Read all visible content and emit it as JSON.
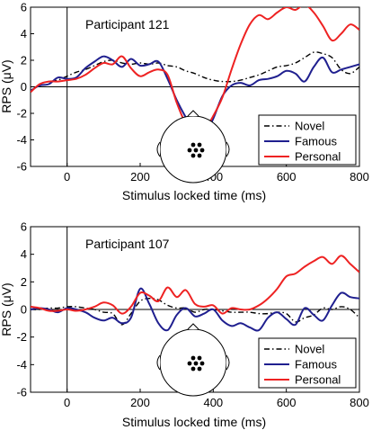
{
  "chart_data": [
    {
      "type": "line",
      "title": "Participant 121",
      "xlabel": "Stimulus locked time (ms)",
      "ylabel": "RPS (μV)",
      "xlim": [
        -100,
        800
      ],
      "ylim": [
        -6,
        6
      ],
      "xticks": [
        "0",
        "200",
        "400",
        "600",
        "800"
      ],
      "yticks": [
        "6",
        "4",
        "2",
        "0",
        "-2",
        "-4",
        "-6"
      ],
      "legend_position": "bottom-right",
      "series": [
        {
          "name": "Novel",
          "color": "#000000",
          "dash": "dashdot",
          "x": [
            -100,
            -75,
            -50,
            -25,
            0,
            25,
            50,
            75,
            100,
            125,
            150,
            175,
            200,
            225,
            250,
            275,
            300,
            325,
            350,
            375,
            400,
            425,
            450,
            475,
            500,
            525,
            550,
            575,
            600,
            625,
            650,
            675,
            700,
            725,
            750,
            775,
            800
          ],
          "y": [
            -0.4,
            0.2,
            0.4,
            0.5,
            0.8,
            1.1,
            1.3,
            1.6,
            1.9,
            2.0,
            1.8,
            1.7,
            1.8,
            1.7,
            1.8,
            1.6,
            1.5,
            1.2,
            1.0,
            0.7,
            0.5,
            0.4,
            0.4,
            0.5,
            0.7,
            0.9,
            1.2,
            1.5,
            1.6,
            1.8,
            2.2,
            2.6,
            2.5,
            2.2,
            1.3,
            1.0,
            1.5
          ]
        },
        {
          "name": "Famous",
          "color": "#1f1f8f",
          "dash": "solid",
          "x": [
            -100,
            -75,
            -50,
            -25,
            0,
            25,
            50,
            75,
            100,
            125,
            150,
            175,
            200,
            225,
            250,
            275,
            300,
            325,
            350,
            375,
            400,
            425,
            450,
            475,
            500,
            525,
            550,
            575,
            600,
            625,
            650,
            675,
            700,
            725,
            750,
            775,
            800
          ],
          "y": [
            -0.3,
            0.1,
            0.2,
            0.7,
            0.6,
            0.7,
            1.4,
            1.9,
            2.3,
            2.0,
            1.5,
            2.1,
            1.6,
            1.7,
            1.9,
            0.6,
            -1.0,
            -2.3,
            -3.4,
            -3.7,
            -2.4,
            -0.7,
            0.1,
            0.3,
            0.1,
            0.5,
            0.6,
            0.8,
            1.2,
            1.0,
            0.4,
            1.5,
            2.2,
            1.1,
            1.3,
            1.5,
            1.7
          ]
        },
        {
          "name": "Personal",
          "color": "#ee2222",
          "dash": "solid",
          "x": [
            -100,
            -75,
            -50,
            -25,
            0,
            25,
            50,
            75,
            100,
            125,
            150,
            175,
            200,
            225,
            250,
            275,
            300,
            325,
            350,
            375,
            400,
            425,
            450,
            475,
            500,
            525,
            550,
            575,
            600,
            625,
            650,
            675,
            700,
            725,
            750,
            775,
            800
          ],
          "y": [
            -0.4,
            0.2,
            0.4,
            0.4,
            0.5,
            0.6,
            0.9,
            1.4,
            1.8,
            1.7,
            2.3,
            1.4,
            0.8,
            1.1,
            1.3,
            0.9,
            -1.2,
            -2.8,
            -3.8,
            -3.3,
            -2.2,
            -0.8,
            1.3,
            3.2,
            4.7,
            5.4,
            5.1,
            5.6,
            6.0,
            5.8,
            6.2,
            5.6,
            4.6,
            3.5,
            4.0,
            4.7,
            4.3
          ]
        }
      ]
    },
    {
      "type": "line",
      "title": "Participant 107",
      "xlabel": "Stimulus locked time (ms)",
      "ylabel": "RPS (μV)",
      "xlim": [
        -100,
        800
      ],
      "ylim": [
        -6,
        6
      ],
      "xticks": [
        "0",
        "200",
        "400",
        "600",
        "800"
      ],
      "yticks": [
        "6",
        "4",
        "2",
        "0",
        "-2",
        "-4",
        "-6"
      ],
      "legend_position": "bottom-right",
      "series": [
        {
          "name": "Novel",
          "color": "#000000",
          "dash": "dashdot",
          "x": [
            -100,
            -75,
            -50,
            -25,
            0,
            25,
            50,
            75,
            100,
            125,
            150,
            175,
            200,
            225,
            250,
            275,
            300,
            325,
            350,
            375,
            400,
            425,
            450,
            475,
            500,
            525,
            550,
            575,
            600,
            625,
            650,
            675,
            700,
            725,
            750,
            775,
            800
          ],
          "y": [
            0.0,
            0.0,
            0.1,
            0.1,
            0.2,
            0.2,
            0.1,
            0.0,
            -0.2,
            -0.3,
            -1.1,
            -0.3,
            0.6,
            0.8,
            0.7,
            0.3,
            0.1,
            0.1,
            -0.2,
            0.0,
            0.0,
            -0.1,
            -0.2,
            -0.2,
            -0.2,
            -0.3,
            -0.3,
            -0.2,
            -0.3,
            -0.9,
            -0.6,
            -0.4,
            0.1,
            0.0,
            0.2,
            0.0,
            -0.6
          ]
        },
        {
          "name": "Famous",
          "color": "#1f1f8f",
          "dash": "solid",
          "x": [
            -100,
            -75,
            -50,
            -25,
            0,
            25,
            50,
            75,
            100,
            125,
            150,
            175,
            200,
            225,
            250,
            275,
            300,
            325,
            350,
            375,
            400,
            425,
            450,
            475,
            500,
            525,
            550,
            575,
            600,
            625,
            650,
            675,
            700,
            725,
            750,
            775,
            800
          ],
          "y": [
            0.0,
            0.1,
            0.0,
            -0.2,
            0.1,
            0.0,
            -0.2,
            -0.6,
            -0.8,
            -0.6,
            -1.0,
            -0.6,
            1.5,
            0.4,
            -1.0,
            -1.5,
            -0.4,
            0.1,
            -0.5,
            -0.3,
            0.0,
            -0.8,
            -1.2,
            -1.0,
            -1.3,
            -1.5,
            -0.6,
            -0.2,
            -0.7,
            -1.1,
            0.1,
            -0.4,
            -0.8,
            0.3,
            1.2,
            0.9,
            0.8
          ]
        },
        {
          "name": "Personal",
          "color": "#ee2222",
          "dash": "solid",
          "x": [
            -100,
            -75,
            -50,
            -25,
            0,
            25,
            50,
            75,
            100,
            125,
            150,
            175,
            200,
            225,
            250,
            275,
            300,
            325,
            350,
            375,
            400,
            425,
            450,
            475,
            500,
            525,
            550,
            575,
            600,
            625,
            650,
            675,
            700,
            725,
            750,
            775,
            800
          ],
          "y": [
            0.2,
            0.1,
            -0.1,
            -0.1,
            0.0,
            -0.1,
            0.0,
            0.2,
            0.5,
            0.3,
            -0.3,
            0.2,
            1.2,
            1.0,
            0.6,
            1.6,
            0.9,
            1.4,
            0.4,
            0.2,
            0.3,
            -0.3,
            0.1,
            0.0,
            0.0,
            0.3,
            0.8,
            1.5,
            2.4,
            2.6,
            3.1,
            3.5,
            3.8,
            3.3,
            3.9,
            3.3,
            2.7
          ]
        }
      ]
    }
  ]
}
